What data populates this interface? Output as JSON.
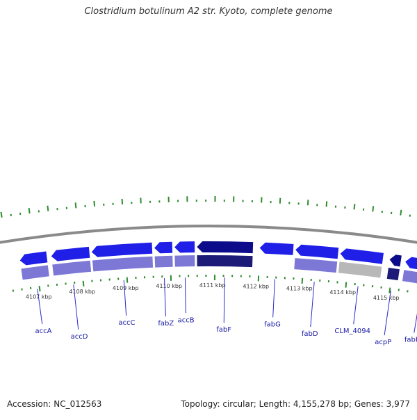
{
  "title": "Clostridium botulinum A2 str. Kyoto, complete genome",
  "footer": {
    "accession": "Accession: NC_012563",
    "summary": "Topology: circular; Length: 4,155,278 bp; Genes: 3,977"
  },
  "colors": {
    "gene_arrow": "#1f1fe8",
    "gene_arrow_dark": "#0c0c8a",
    "cds_lavender": "#7d78d6",
    "cds_dark": "#1c1c78",
    "cds_gray": "#b8b8b8",
    "backbone": "#8a8a8a",
    "tick_green": "#2e8b2e",
    "label_blue": "#1a1aa6",
    "leader": "#2b2bcc"
  },
  "scale_ticks": [
    {
      "kbp": 4107,
      "label": "4107 kbp"
    },
    {
      "kbp": 4108,
      "label": "4108 kbp"
    },
    {
      "kbp": 4109,
      "label": "4109 kbp"
    },
    {
      "kbp": 4110,
      "label": "4110 kbp"
    },
    {
      "kbp": 4111,
      "label": "4111 kbp"
    },
    {
      "kbp": 4112,
      "label": "4112 kbp"
    },
    {
      "kbp": 4113,
      "label": "4113 kbp"
    },
    {
      "kbp": 4114,
      "label": "4114 kbp"
    },
    {
      "kbp": 4115,
      "label": "4115 kbp"
    }
  ],
  "genes": [
    {
      "name": "accA",
      "start_kbp": 4106.7,
      "end_kbp": 4107.3,
      "strand": "-",
      "feature": "lavender"
    },
    {
      "name": "accD",
      "start_kbp": 4107.4,
      "end_kbp": 4108.25,
      "strand": "-",
      "feature": "lavender"
    },
    {
      "name": "accC",
      "start_kbp": 4108.3,
      "end_kbp": 4109.65,
      "strand": "-",
      "feature": "lavender"
    },
    {
      "name": "fabZ",
      "start_kbp": 4109.7,
      "end_kbp": 4110.1,
      "strand": "-",
      "feature": "lavender"
    },
    {
      "name": "accB",
      "start_kbp": 4110.15,
      "end_kbp": 4110.6,
      "strand": "-",
      "feature": "lavender"
    },
    {
      "name": "fabF",
      "start_kbp": 4110.65,
      "end_kbp": 4111.9,
      "strand": "-",
      "feature": "dark"
    },
    {
      "name": "fabG",
      "start_kbp": 4112.05,
      "end_kbp": 4112.8,
      "strand": "-",
      "feature": "none"
    },
    {
      "name": "fabD",
      "start_kbp": 4112.85,
      "end_kbp": 4113.8,
      "strand": "-",
      "feature": "lavender"
    },
    {
      "name": "CLM_4094",
      "start_kbp": 4113.85,
      "end_kbp": 4114.8,
      "strand": "-",
      "feature": "gray"
    },
    {
      "name": "acpP",
      "start_kbp": 4114.95,
      "end_kbp": 4115.2,
      "strand": "-",
      "feature": "dark"
    },
    {
      "name": "fabH",
      "start_kbp": 4115.3,
      "end_kbp": 4116.2,
      "strand": "-",
      "feature": "lavender"
    }
  ]
}
